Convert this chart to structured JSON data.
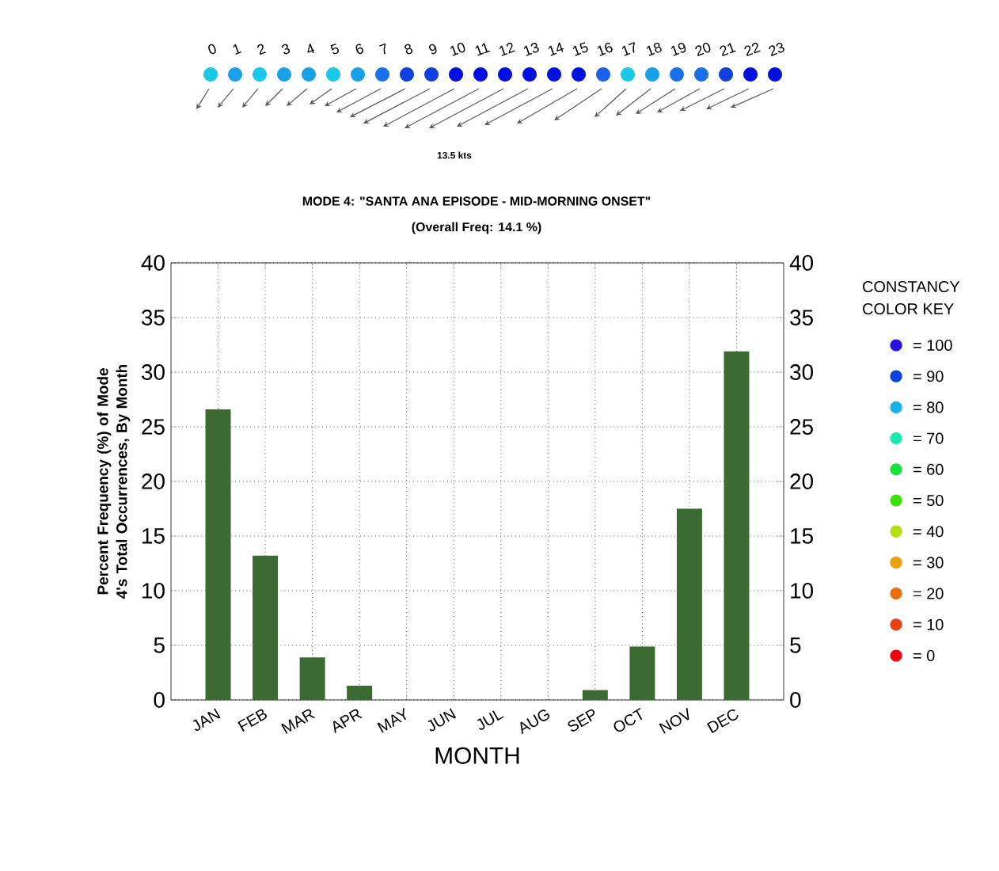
{
  "chart_data": {
    "type": "bar",
    "title": "MODE 4:  \"SANTA ANA EPISODE -  MID-MORNING ONSET\"",
    "subtitle": "(Overall Freq: 14.1 %)",
    "xlabel": "MONTH",
    "ylabel": "Percent Frequency (%) of Mode 4's Total Occurrences, By Month",
    "categories": [
      "JAN",
      "FEB",
      "MAR",
      "APR",
      "MAY",
      "JUN",
      "JUL",
      "AUG",
      "SEP",
      "OCT",
      "NOV",
      "DEC"
    ],
    "values": [
      26.6,
      13.2,
      3.9,
      1.3,
      0,
      0,
      0,
      0,
      0.9,
      4.9,
      17.5,
      31.9
    ],
    "color": "#3b6b33",
    "ylim": [
      0,
      40
    ],
    "yticks": [
      0,
      5,
      10,
      15,
      20,
      25,
      30,
      35,
      40
    ],
    "y2lim": [
      0,
      40
    ],
    "y2ticks": [
      0,
      5,
      10,
      15,
      20,
      25,
      30,
      35,
      40
    ],
    "grid": true,
    "annotations": [
      "0",
      "1",
      "2",
      "3",
      "4",
      "5",
      "6",
      "7",
      "8",
      "9",
      "10",
      "11",
      "12",
      "13",
      "14",
      "15",
      "16",
      "17",
      "18",
      "19",
      "20",
      "21",
      "22",
      "23",
      "13.5 kts",
      "CONSTANCY",
      "COLOR KEY",
      "= 100",
      "=  90",
      "=  80",
      "=  70",
      "=  60",
      "=  50",
      "=  40",
      "=  30",
      "=  20",
      "=  10",
      "=   0"
    ]
  }
}
